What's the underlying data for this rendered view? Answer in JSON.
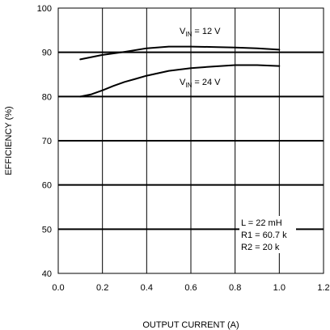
{
  "chart_data": {
    "type": "line",
    "xlabel": "OUTPUT CURRENT (A)",
    "ylabel": "EFFICIENCY (%)",
    "xlim": [
      0,
      1.2
    ],
    "ylim": [
      40,
      100
    ],
    "x_ticks": [
      "0.0",
      "0.2",
      "0.4",
      "0.6",
      "0.8",
      "1.0",
      "1.2"
    ],
    "y_ticks": [
      "40",
      "50",
      "60",
      "70",
      "80",
      "90",
      "100"
    ],
    "grid": true,
    "series": [
      {
        "name_main": "V",
        "name_sub": "IN",
        "name_rest": " = 12 V",
        "color": "#000000",
        "x": [
          0.1,
          0.2,
          0.3,
          0.4,
          0.5,
          0.6,
          0.7,
          0.8,
          0.9,
          1.0
        ],
        "y": [
          88.4,
          89.4,
          90.1,
          90.9,
          91.3,
          91.3,
          91.2,
          91.1,
          90.9,
          90.6
        ]
      },
      {
        "name_main": "V",
        "name_sub": "IN",
        "name_rest": " = 24 V",
        "color": "#000000",
        "x": [
          0.1,
          0.15,
          0.2,
          0.25,
          0.3,
          0.35,
          0.4,
          0.5,
          0.6,
          0.7,
          0.8,
          0.9,
          1.0
        ],
        "y": [
          80.0,
          80.5,
          81.4,
          82.4,
          83.3,
          84.0,
          84.7,
          85.8,
          86.4,
          86.8,
          87.1,
          87.1,
          86.9
        ]
      }
    ],
    "annotations": [
      "L = 22 mH",
      "R1 = 60.7 k",
      "R2 = 20 k"
    ]
  }
}
